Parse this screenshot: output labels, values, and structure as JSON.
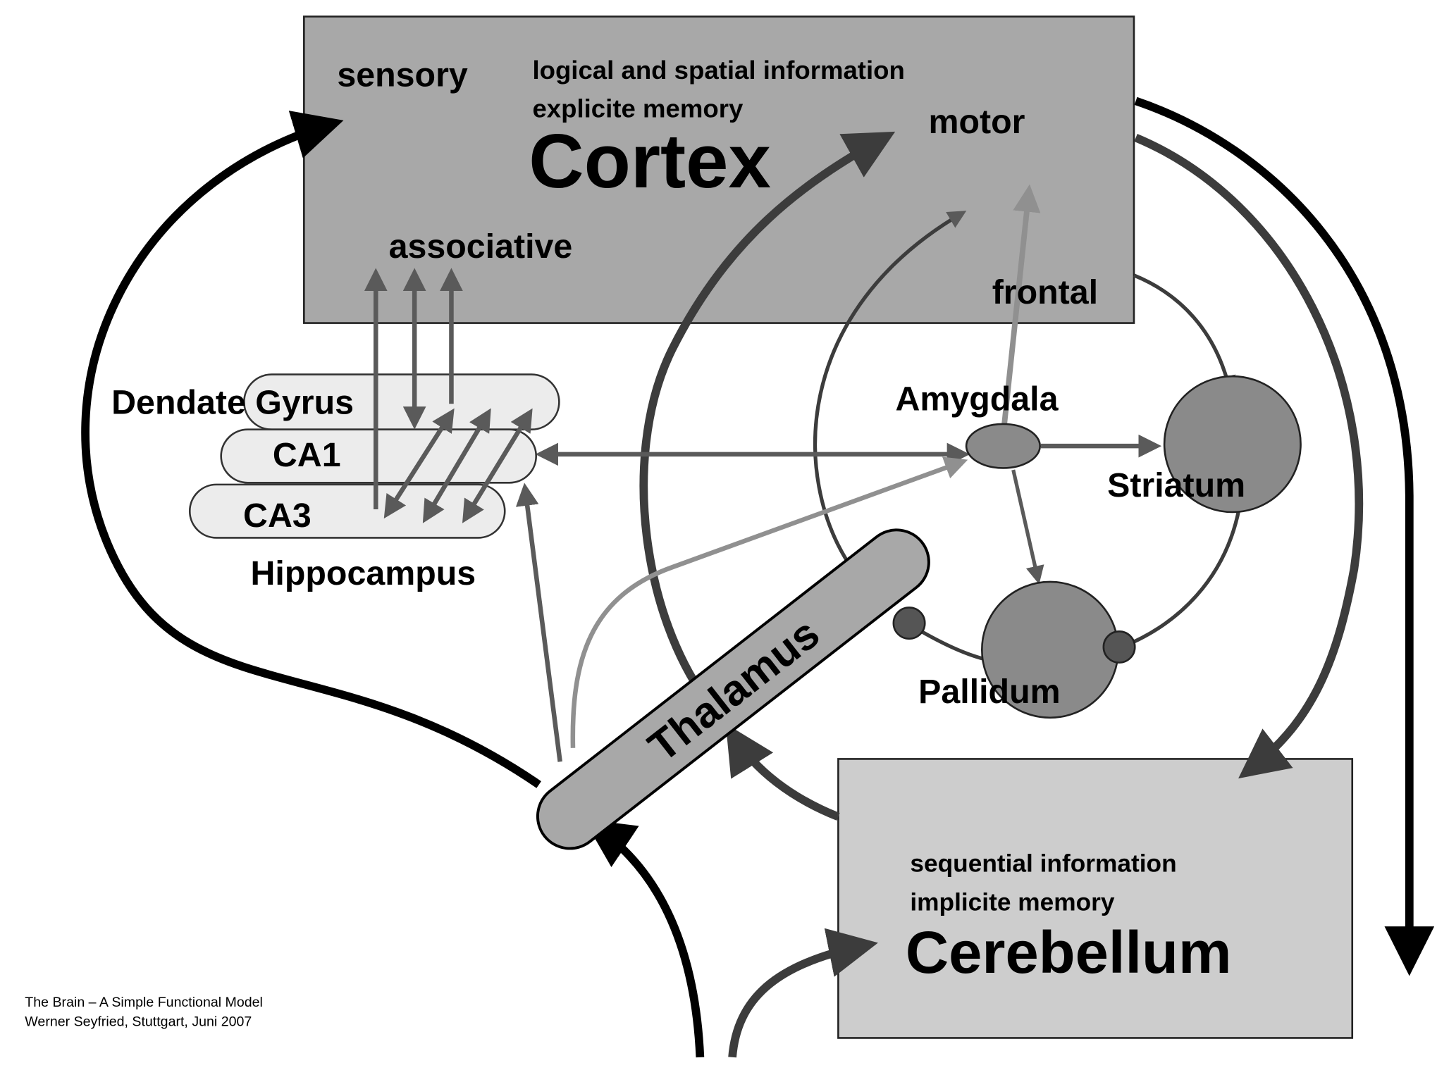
{
  "colors": {
    "box_dark": "#a8a8a8",
    "box_light": "#cdcdcd",
    "node": "#8a8a8a",
    "hippo_fill": "#ececec",
    "arrow_black": "#000000",
    "arrow_dark": "#3c3c3c",
    "arrow_mid": "#5a5a5a",
    "arrow_light": "#909090"
  },
  "cortex": {
    "title": "Cortex",
    "sensory": "sensory",
    "info_line1": "logical and spatial information",
    "info_line2": "explicite memory",
    "motor": "motor",
    "associative": "associative",
    "frontal": "frontal"
  },
  "hippocampus": {
    "title": "Hippocampus",
    "dentate_gyrus": "Dendate Gyrus",
    "ca1": "CA1",
    "ca3": "CA3"
  },
  "amygdala": "Amygdala",
  "striatum": "Striatum",
  "pallidum": "Pallidum",
  "thalamus": "Thalamus",
  "cerebellum": {
    "title": "Cerebellum",
    "info_line1": "sequential information",
    "info_line2": "implicite memory"
  },
  "credit": {
    "line1": "The Brain – A Simple Functional Model",
    "line2": "Werner Seyfried, Stuttgart, Juni 2007"
  }
}
